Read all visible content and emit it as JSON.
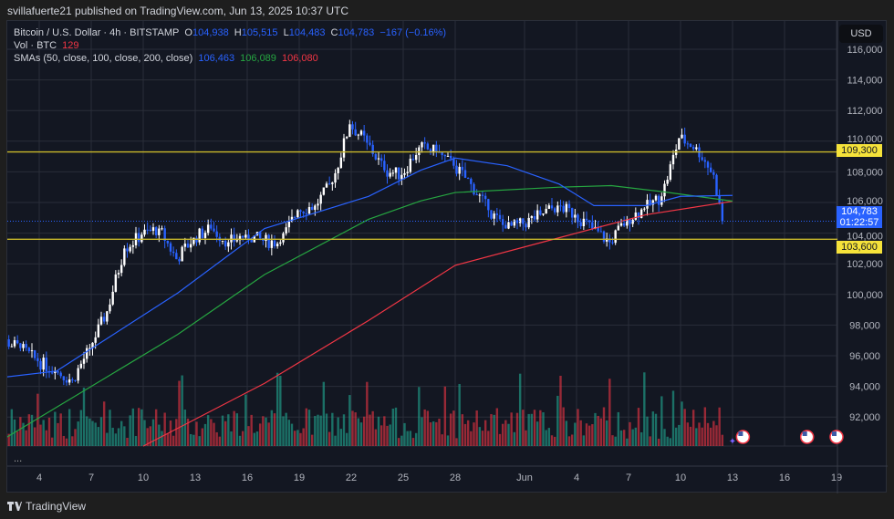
{
  "publisher": "svillafuerte21 published on TradingView.com, Jun 13, 2025 10:37 UTC",
  "legend": {
    "symbol": "Bitcoin / U.S. Dollar · 4h · BITSTAMP",
    "o_label": "O",
    "o": "104,938",
    "h_label": "H",
    "h": "105,515",
    "l_label": "L",
    "l": "104,483",
    "c_label": "C",
    "c": "104,783",
    "change": "−167 (−0.16%)",
    "vol_label": "Vol · BTC",
    "vol": "129",
    "sma_label": "SMAs (50, close, 100, close, 200, close)",
    "sma50": "106,463",
    "sma100": "106,089",
    "sma200": "106,080"
  },
  "currency": "USD",
  "price_tags": {
    "resistance": "109,300",
    "last": "104,783",
    "countdown": "01:22:57",
    "support": "103,600"
  },
  "pane_more": "...",
  "footer_logo": "TradingView",
  "colors": {
    "up": "#ffffff",
    "down": "#2962ff",
    "sma50": "#2962ff",
    "sma100": "#26a641",
    "sma200": "#f23645",
    "hline": "#c9b82b",
    "vol_up": "#22ab94",
    "vol_down": "#f23645"
  },
  "icons": [
    "us-flag-event-icon",
    "us-flag-event-icon",
    "us-flag-event-icon",
    "sparkle-icon",
    "tradingview-logo-icon"
  ],
  "chart_data": {
    "type": "candlestick",
    "timeframe": "4h",
    "ylim": [
      90000,
      117000
    ],
    "y_ticks": [
      92000,
      94000,
      96000,
      98000,
      100000,
      102000,
      104000,
      106000,
      108000,
      110000,
      112000,
      114000,
      116000
    ],
    "y_tick_labels": [
      "92,000",
      "94,000",
      "96,000",
      "98,000",
      "100,000",
      "102,000",
      "104,000",
      "106,000",
      "108,000",
      "110,000",
      "112,000",
      "114,000",
      "116,000"
    ],
    "x_tick_labels": [
      "4",
      "7",
      "10",
      "13",
      "16",
      "19",
      "22",
      "25",
      "28",
      "Jun",
      "4",
      "7",
      "10",
      "13",
      "16",
      "19"
    ],
    "x_tick_days": [
      4,
      7,
      10,
      13,
      16,
      19,
      22,
      25,
      28,
      32,
      35,
      38,
      41,
      44,
      47,
      50
    ],
    "horizontal_lines": [
      109300,
      103600
    ],
    "daily_close": {
      "days": [
        2,
        3,
        4,
        5,
        6,
        7,
        8,
        9,
        10,
        11,
        12,
        13,
        14,
        15,
        16,
        17,
        18,
        19,
        20,
        21,
        22,
        23,
        24,
        25,
        26,
        27,
        28,
        29,
        30,
        31,
        32,
        33,
        34,
        35,
        36,
        37,
        38,
        39,
        40,
        41,
        42,
        43,
        44
      ],
      "close": [
        97000,
        96500,
        95650,
        95000,
        94400,
        96500,
        98900,
        103000,
        103900,
        104300,
        102300,
        103700,
        104300,
        103400,
        103900,
        103500,
        103400,
        105500,
        105800,
        107300,
        111100,
        109900,
        108100,
        107800,
        109600,
        109300,
        108400,
        107200,
        105500,
        104300,
        104600,
        105200,
        105800,
        105200,
        104300,
        103400,
        104900,
        105600,
        106400,
        110200,
        109600,
        107800,
        104783
      ]
    },
    "sma50": {
      "days": [
        2,
        5,
        12,
        17,
        23,
        26,
        28,
        31,
        34,
        36,
        39,
        41,
        44
      ],
      "values": [
        94600,
        95000,
        100100,
        104300,
        106400,
        108100,
        108900,
        108400,
        107200,
        105800,
        105800,
        106400,
        106463
      ]
    },
    "sma100": {
      "days": [
        2,
        12,
        17,
        23,
        26,
        28,
        34,
        37,
        40,
        44
      ],
      "values": [
        90600,
        97400,
        101300,
        104900,
        106100,
        106650,
        107000,
        107100,
        106700,
        106089
      ]
    },
    "sma200": {
      "days": [
        10,
        17,
        23,
        28,
        34,
        39,
        44
      ],
      "values": [
        90100,
        94200,
        98300,
        101900,
        103700,
        105200,
        106080
      ]
    }
  }
}
